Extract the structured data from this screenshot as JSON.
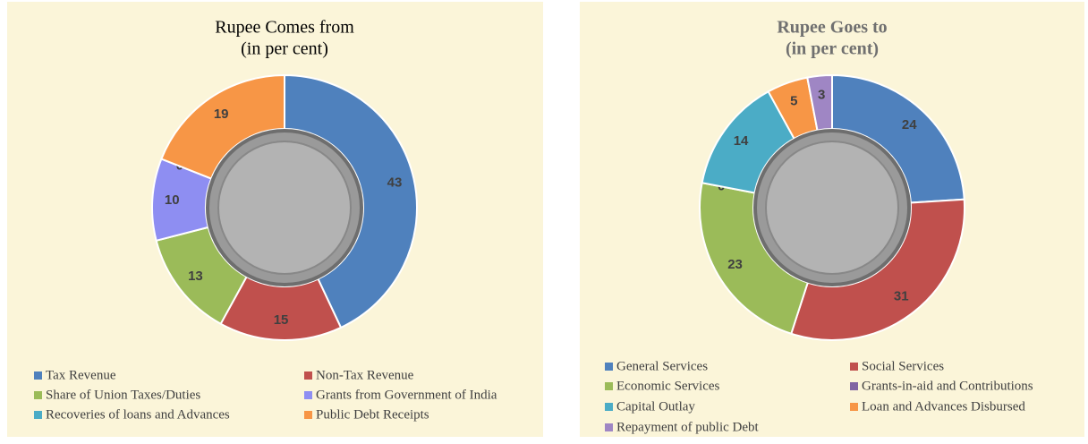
{
  "chart_data": [
    {
      "type": "pie",
      "title": "Rupee Comes from",
      "subtitle": "(in per cent)",
      "categories": [
        "Tax Revenue",
        "Non-Tax Revenue",
        "Share of Union Taxes/Duties",
        "Grants from Government of India",
        "Recoveries of loans and Advances",
        "Public Debt Receipts"
      ],
      "values": [
        43,
        15,
        13,
        10,
        0,
        19
      ],
      "colors": [
        "#4f81bd",
        "#c0504d",
        "#9bbb59",
        "#8e8ef2",
        "#4bacc6",
        "#f79646"
      ]
    },
    {
      "type": "pie",
      "title": "Rupee Goes to",
      "subtitle": "(in per cent)",
      "categories": [
        "General Services",
        "Social Services",
        "Economic Services",
        "Grants-in-aid and Contributions",
        "Capital Outlay",
        "Loan and Advances Disbursed",
        "Repayment of public Debt"
      ],
      "values": [
        24,
        31,
        23,
        0,
        14,
        5,
        3
      ],
      "colors": [
        "#4f81bd",
        "#c0504d",
        "#9bbb59",
        "#8064a2",
        "#4bacc6",
        "#f79646",
        "#9f86c4"
      ]
    }
  ]
}
